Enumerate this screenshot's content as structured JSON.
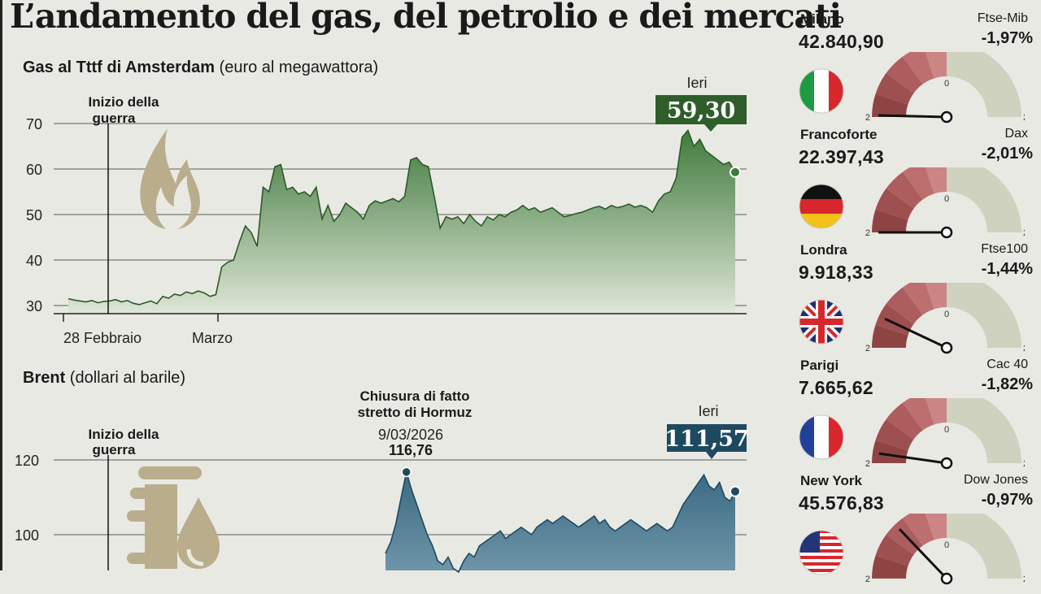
{
  "title": "L’andamento del gas, del petrolio e dei mercati",
  "gas": {
    "title_bold": "Gas al Tttf di Amsterdam",
    "title_rest": "(euro al megawattora)",
    "annotation_war": "Inizio della guerra",
    "last_label": "Ieri",
    "last_value": "59,30"
  },
  "brent": {
    "title_bold": "Brent",
    "title_rest": "(dollari al barile)",
    "annotation_war": "Inizio della guerra",
    "annotation_hormuz": [
      "Chiusura di fatto",
      "stretto di Hormuz",
      "9/03/2026",
      "116,76"
    ],
    "last_label": "Ieri",
    "last_value": "111,57"
  },
  "chart_data": [
    {
      "type": "area",
      "title": "Gas al Tttf di Amsterdam",
      "ylabel": "euro al megawattora",
      "ylim": [
        28,
        72
      ],
      "yticks": [
        30,
        40,
        50,
        60,
        70
      ],
      "xtick_labels": [
        "28 Febbraio",
        "Marzo"
      ],
      "color": "#3f7a3b",
      "values": [
        31.5,
        31.2,
        31.0,
        30.8,
        31.1,
        30.6,
        30.9,
        31.0,
        31.3,
        30.8,
        31.1,
        30.5,
        30.2,
        30.6,
        31.0,
        30.4,
        32.0,
        31.6,
        32.5,
        32.2,
        33.0,
        32.6,
        33.2,
        32.8,
        32.0,
        32.4,
        38.5,
        39.5,
        40.0,
        44.0,
        47.5,
        46.0,
        43.0,
        56.0,
        55.0,
        60.5,
        61.0,
        55.5,
        56.0,
        54.5,
        55.0,
        54.0,
        56.0,
        49.0,
        52.0,
        48.5,
        50.0,
        52.5,
        51.5,
        50.5,
        49.0,
        52.0,
        53.0,
        52.5,
        53.0,
        53.5,
        52.8,
        54.0,
        62.0,
        62.5,
        61.0,
        60.5,
        54.0,
        47.0,
        49.5,
        49.0,
        49.5,
        48.0,
        50.0,
        48.5,
        47.5,
        49.5,
        48.8,
        50.0,
        49.5,
        50.5,
        51.0,
        52.0,
        51.0,
        51.5,
        50.5,
        51.0,
        51.5,
        50.5,
        49.5,
        49.8,
        50.2,
        50.5,
        51.0,
        51.5,
        51.8,
        51.2,
        52.0,
        51.5,
        51.8,
        52.3,
        51.6,
        52.0,
        51.5,
        50.5,
        53.0,
        54.5,
        55.0,
        58.0,
        67.0,
        68.5,
        65.0,
        66.5,
        64.0,
        63.0,
        62.0,
        61.0,
        61.5,
        59.3
      ]
    },
    {
      "type": "area",
      "title": "Brent",
      "ylabel": "dollari al barile",
      "ylim": [
        88,
        124
      ],
      "yticks": [
        100,
        120
      ],
      "color": "#3a6a82",
      "highlights": [
        {
          "label": "9/03/2026",
          "value": 116.76
        },
        {
          "label": "Ieri",
          "value": 111.57
        }
      ],
      "values": [
        95,
        98,
        103,
        110,
        116.76,
        112,
        108,
        104,
        100,
        97,
        93,
        92,
        94,
        91,
        90,
        93,
        95,
        94,
        97,
        98,
        99,
        100,
        101,
        99,
        100,
        101,
        102,
        101,
        100,
        102,
        103,
        104,
        103,
        104,
        105,
        104,
        103,
        102,
        103,
        104,
        105,
        103,
        104,
        102,
        101,
        102,
        103,
        104,
        103,
        102,
        101,
        102,
        103,
        102,
        101,
        102,
        105,
        108,
        110,
        112,
        114,
        116,
        113,
        112,
        114,
        110,
        109,
        111.57
      ]
    }
  ],
  "markets": [
    {
      "city": "Milano",
      "value": "42.840,90",
      "index": "Ftse-Mib",
      "change": "-1,97%",
      "change_num": -1.97,
      "flag": "italy-flag-icon"
    },
    {
      "city": "Francoforte",
      "value": "22.397,43",
      "index": "Dax",
      "change": "-2,01%",
      "change_num": -2.01,
      "flag": "germany-flag-icon"
    },
    {
      "city": "Londra",
      "value": "9.918,33",
      "index": "Ftse100",
      "change": "-1,44%",
      "change_num": -1.44,
      "flag": "uk-flag-icon"
    },
    {
      "city": "Parigi",
      "value": "7.665,62",
      "index": "Cac 40",
      "change": "-1,82%",
      "change_num": -1.82,
      "flag": "france-flag-icon"
    },
    {
      "city": "New York",
      "value": "45.576,83",
      "index": "Dow Jones",
      "change": "-0,97%",
      "change_num": -0.97,
      "flag": "usa-flag-icon"
    }
  ],
  "gauge_ticks": [
    "-2",
    "0",
    "2"
  ],
  "colors": {
    "gas": "#3f7a3b",
    "gas_label": "#2f5e2b",
    "brent": "#3a6a82",
    "brent_label": "#1e4a60",
    "gauge_neg": "#a85a5a",
    "gauge_pos": "#cfd2bf"
  }
}
